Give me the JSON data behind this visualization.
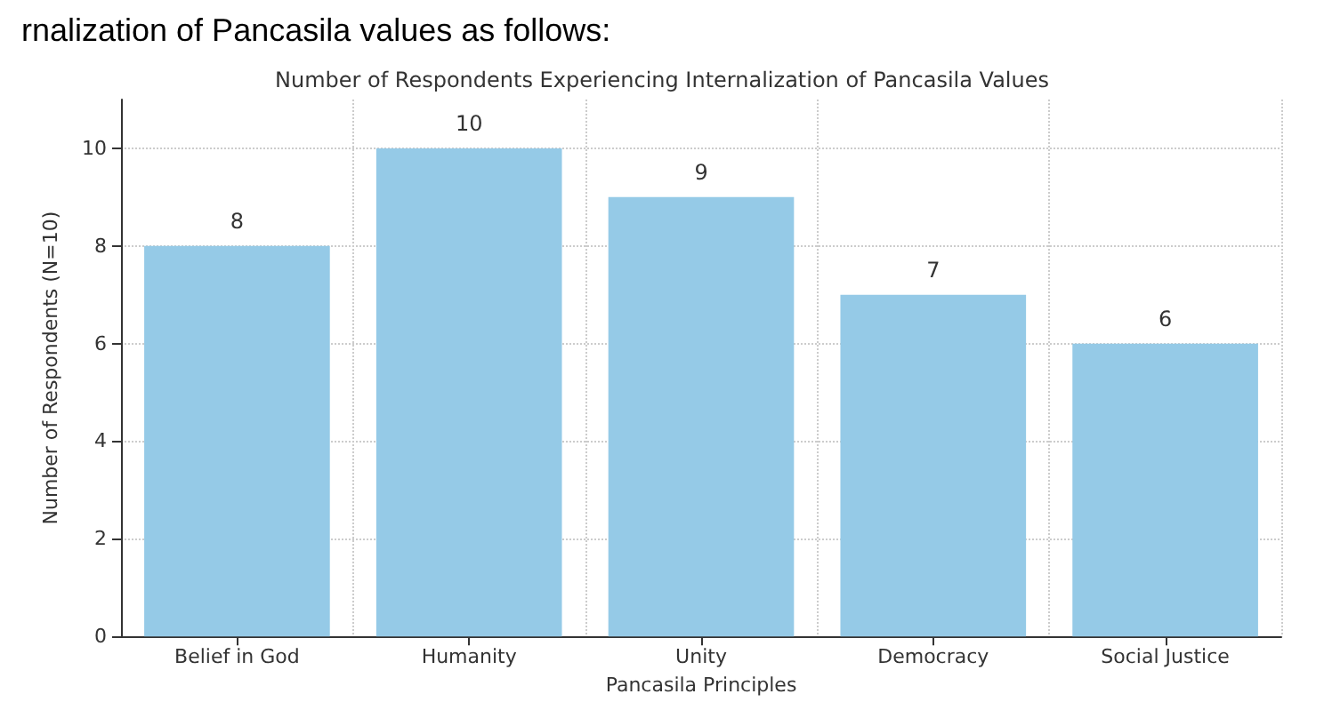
{
  "chart_data": {
    "type": "bar",
    "title": "Number of Respondents Experiencing Internalization of Pancasila Values",
    "xlabel": "Pancasila Principles",
    "ylabel": "Number of Respondents (N=10)",
    "annotations": [
      "rnalization of Pancasila values as follows:"
    ],
    "categories": [
      "Belief in God",
      "Humanity",
      "Unity",
      "Democracy",
      "Social Justice"
    ],
    "values": [
      8,
      10,
      9,
      7,
      6
    ],
    "color": "#95cae7",
    "ylim": [
      0,
      11
    ],
    "yticks": [
      0,
      2,
      4,
      6,
      8,
      10
    ],
    "grid": true,
    "data_labels": true
  }
}
